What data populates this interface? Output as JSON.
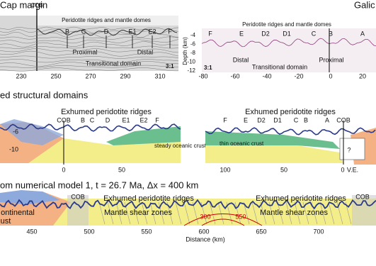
{
  "top_left": {
    "title": "Cap margin",
    "cob": "COB",
    "header": "Peridotite ridges and mantle domes",
    "labels": [
      "B",
      "C",
      "D",
      "E1",
      "E2",
      "F"
    ],
    "proximal": "Proximal",
    "distal": "Distal",
    "transitional": "Transitional domain",
    "ratio": "3:1",
    "xticks": [
      230,
      250,
      270,
      290,
      310
    ]
  },
  "top_right": {
    "title": "Galic",
    "header": "Peridotite ridges and mantle domes",
    "labels": [
      "F",
      "E",
      "D2",
      "D1",
      "C",
      "B",
      "A"
    ],
    "distal": "Distal",
    "proximal": "Proximal",
    "transitional": "Transitional domain",
    "ratio": "3:1",
    "y_label": "Depth (km)",
    "yticks": [
      -4,
      -6,
      -8,
      -10,
      -12
    ],
    "xticks": [
      -80,
      -60,
      -40,
      -20,
      0,
      20
    ]
  },
  "middle": {
    "title": "ed structural domains",
    "left": {
      "header": "Exhumed peridotite ridges",
      "cob": "COB",
      "labels": [
        "B",
        "C",
        "D",
        "E1",
        "E2",
        "F"
      ],
      "crust": "steady oceanic crust",
      "yticks": [
        -6,
        -10
      ],
      "xticks": [
        0,
        50
      ]
    },
    "right": {
      "header": "Exhumed peridotite ridges",
      "labels": [
        "F",
        "E",
        "D2",
        "D1",
        "C",
        "B",
        "A"
      ],
      "cob": "COB",
      "crust": "thin oceanic crust",
      "xticks": [
        100,
        50,
        0
      ],
      "question": "?",
      "ve": "V.E."
    }
  },
  "bottom": {
    "title": "om numerical model 1, t = 26.7 Ma, Δx = 400 km",
    "continental": "ontinental",
    "crust": "ust",
    "cob_left": "COB",
    "ridges_left": "Exhumed peridotite ridges",
    "ridges_right": "Exhumed peridotite ridges",
    "cob_right": "COB",
    "shear_left": "Mantle shear zones",
    "shear_right": "Mantle shear zones",
    "iso_300": "300",
    "iso_550": "550",
    "xticks": [
      450,
      500,
      550,
      600,
      650,
      700
    ],
    "x_label": "Distance (km)"
  }
}
